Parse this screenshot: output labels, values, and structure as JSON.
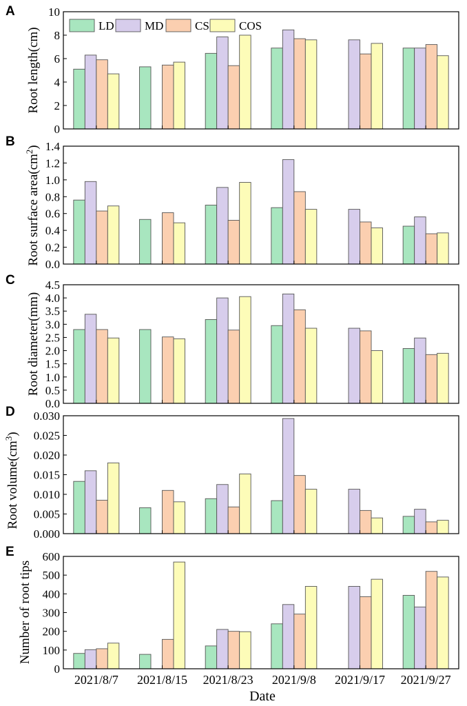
{
  "chart_data": [
    {
      "panel": "A",
      "type": "bar",
      "ylabel": "Root length(cm)",
      "ylabel_sup": "",
      "ylabel_suffix": "",
      "ylim": [
        0,
        10
      ],
      "yticks": [
        0,
        2,
        4,
        6,
        8,
        10
      ],
      "ytick_labels": [
        "0",
        "2",
        "4",
        "6",
        "8",
        "10"
      ],
      "categories": [
        "2021/8/7",
        "2021/8/15",
        "2021/8/23",
        "2021/9/8",
        "2021/9/17",
        "2021/9/27"
      ],
      "series": [
        {
          "name": "LD",
          "values": [
            5.1,
            5.3,
            6.45,
            6.9,
            null,
            6.9
          ]
        },
        {
          "name": "MD",
          "values": [
            6.3,
            null,
            7.85,
            8.45,
            7.6,
            6.9
          ]
        },
        {
          "name": "CS",
          "values": [
            5.9,
            5.45,
            5.4,
            7.7,
            6.4,
            7.2
          ]
        },
        {
          "name": "COS",
          "values": [
            4.7,
            5.7,
            8.0,
            7.6,
            7.3,
            6.25
          ]
        }
      ],
      "legend": [
        "LD",
        "MD",
        "CS",
        "COS"
      ],
      "legend_position": "top-left"
    },
    {
      "panel": "B",
      "type": "bar",
      "ylabel": "Root surface area(cm",
      "ylabel_sup": "2",
      "ylabel_suffix": ")",
      "ylim": [
        0,
        1.4
      ],
      "yticks": [
        0,
        0.2,
        0.4,
        0.6,
        0.8,
        1.0,
        1.2,
        1.4
      ],
      "ytick_labels": [
        "0.0",
        "0.2",
        "0.4",
        "0.6",
        "0.8",
        "1.0",
        "1.2",
        "1.4"
      ],
      "categories": [
        "2021/8/7",
        "2021/8/15",
        "2021/8/23",
        "2021/9/8",
        "2021/9/17",
        "2021/9/27"
      ],
      "series": [
        {
          "name": "LD",
          "values": [
            0.76,
            0.53,
            0.7,
            0.67,
            null,
            0.45
          ]
        },
        {
          "name": "MD",
          "values": [
            0.98,
            null,
            0.91,
            1.24,
            0.65,
            0.56
          ]
        },
        {
          "name": "CS",
          "values": [
            0.63,
            0.61,
            0.52,
            0.86,
            0.5,
            0.36
          ]
        },
        {
          "name": "COS",
          "values": [
            0.69,
            0.49,
            0.97,
            0.65,
            0.43,
            0.37
          ]
        }
      ]
    },
    {
      "panel": "C",
      "type": "bar",
      "ylabel": "Root diameter(mm)",
      "ylabel_sup": "",
      "ylabel_suffix": "",
      "ylim": [
        0,
        4.5
      ],
      "yticks": [
        0,
        0.5,
        1.0,
        1.5,
        2.0,
        2.5,
        3.0,
        3.5,
        4.0,
        4.5
      ],
      "ytick_labels": [
        "0.0",
        "0.5",
        "1.0",
        "1.5",
        "2.0",
        "2.5",
        "3.0",
        "3.5",
        "4.0",
        "4.5"
      ],
      "categories": [
        "2021/8/7",
        "2021/8/15",
        "2021/8/23",
        "2021/9/8",
        "2021/9/17",
        "2021/9/27"
      ],
      "series": [
        {
          "name": "LD",
          "values": [
            2.8,
            2.8,
            3.18,
            2.95,
            null,
            2.08
          ]
        },
        {
          "name": "MD",
          "values": [
            3.38,
            null,
            4.0,
            4.15,
            2.85,
            2.48
          ]
        },
        {
          "name": "CS",
          "values": [
            2.8,
            2.52,
            2.78,
            3.55,
            2.75,
            1.85
          ]
        },
        {
          "name": "COS",
          "values": [
            2.48,
            2.45,
            4.05,
            2.85,
            2.0,
            1.9
          ]
        }
      ]
    },
    {
      "panel": "D",
      "type": "bar",
      "ylabel": "Root volume(cm",
      "ylabel_sup": "3",
      "ylabel_suffix": ")",
      "ylim": [
        0,
        0.03
      ],
      "yticks": [
        0,
        0.005,
        0.01,
        0.015,
        0.02,
        0.025,
        0.03
      ],
      "ytick_labels": [
        "0.000",
        "0.005",
        "0.010",
        "0.015",
        "0.020",
        "0.025",
        "0.030"
      ],
      "categories": [
        "2021/8/7",
        "2021/8/15",
        "2021/8/23",
        "2021/9/8",
        "2021/9/17",
        "2021/9/27"
      ],
      "series": [
        {
          "name": "LD",
          "values": [
            0.0133,
            0.0066,
            0.0089,
            0.0084,
            null,
            0.0044
          ]
        },
        {
          "name": "MD",
          "values": [
            0.016,
            null,
            0.0125,
            0.0293,
            0.0113,
            0.0062
          ]
        },
        {
          "name": "CS",
          "values": [
            0.0085,
            0.011,
            0.0068,
            0.0148,
            0.0059,
            0.003
          ]
        },
        {
          "name": "COS",
          "values": [
            0.018,
            0.0081,
            0.0152,
            0.0113,
            0.004,
            0.0034
          ]
        }
      ]
    },
    {
      "panel": "E",
      "type": "bar",
      "ylabel": "Number of root tips",
      "ylabel_sup": "",
      "ylabel_suffix": "",
      "xlabel": "Date",
      "ylim": [
        0,
        600
      ],
      "yticks": [
        0,
        100,
        200,
        300,
        400,
        500,
        600
      ],
      "ytick_labels": [
        "0",
        "100",
        "200",
        "300",
        "400",
        "500",
        "600"
      ],
      "categories": [
        "2021/8/7",
        "2021/8/15",
        "2021/8/23",
        "2021/9/8",
        "2021/9/17",
        "2021/9/27"
      ],
      "series": [
        {
          "name": "LD",
          "values": [
            82,
            77,
            122,
            240,
            null,
            392
          ]
        },
        {
          "name": "MD",
          "values": [
            102,
            null,
            210,
            343,
            440,
            330
          ]
        },
        {
          "name": "CS",
          "values": [
            107,
            157,
            200,
            292,
            385,
            520
          ]
        },
        {
          "name": "COS",
          "values": [
            137,
            570,
            198,
            440,
            478,
            490
          ]
        }
      ]
    }
  ],
  "colors": {
    "LD": "#a8e6bf",
    "MD": "#d7cdec",
    "CS": "#fbcfb0",
    "COS": "#fdfcb8"
  }
}
